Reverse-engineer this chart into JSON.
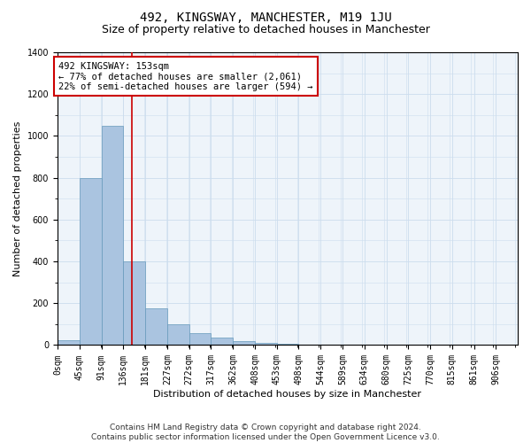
{
  "title1": "492, KINGSWAY, MANCHESTER, M19 1JU",
  "title2": "Size of property relative to detached houses in Manchester",
  "xlabel": "Distribution of detached houses by size in Manchester",
  "ylabel": "Number of detached properties",
  "bin_labels": [
    "0sqm",
    "45sqm",
    "91sqm",
    "136sqm",
    "181sqm",
    "227sqm",
    "272sqm",
    "317sqm",
    "362sqm",
    "408sqm",
    "453sqm",
    "498sqm",
    "544sqm",
    "589sqm",
    "634sqm",
    "680sqm",
    "725sqm",
    "770sqm",
    "815sqm",
    "861sqm",
    "906sqm"
  ],
  "bar_values": [
    25,
    800,
    1050,
    400,
    175,
    100,
    55,
    35,
    20,
    10,
    5,
    3,
    2,
    1,
    0,
    0,
    0,
    0,
    0,
    0
  ],
  "bar_color": "#aac4e0",
  "bar_edge_color": "#6699bb",
  "property_line_x": 153,
  "annotation_text": "492 KINGSWAY: 153sqm\n← 77% of detached houses are smaller (2,061)\n22% of semi-detached houses are larger (594) →",
  "annotation_box_color": "#ffffff",
  "annotation_box_edge_color": "#cc0000",
  "vline_color": "#cc0000",
  "ylim": [
    0,
    1400
  ],
  "yticks": [
    0,
    200,
    400,
    600,
    800,
    1000,
    1200,
    1400
  ],
  "grid_color": "#ccddee",
  "background_color": "#eef4fa",
  "footer_text": "Contains HM Land Registry data © Crown copyright and database right 2024.\nContains public sector information licensed under the Open Government Licence v3.0.",
  "title1_fontsize": 10,
  "title2_fontsize": 9,
  "xlabel_fontsize": 8,
  "ylabel_fontsize": 8,
  "annotation_fontsize": 7.5,
  "footer_fontsize": 6.5,
  "tick_fontsize": 7
}
